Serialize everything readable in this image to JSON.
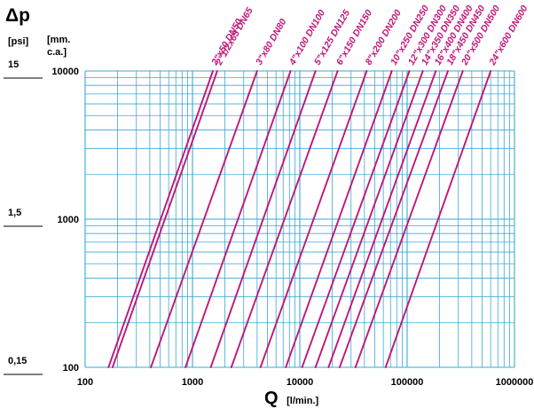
{
  "chart_data": {
    "type": "line",
    "x_scale": "log",
    "y_scale": "log",
    "xlim": [
      100,
      1000000
    ],
    "ylim": [
      100,
      10000
    ],
    "grid": true,
    "title": "Δp",
    "xlabel_main": "Q",
    "xlabel_unit": "[l/min.]",
    "y_unit_left": "[psi]",
    "y_unit_right": "[mm. c.a.]",
    "x_ticks": [
      {
        "value": 100,
        "label": "100"
      },
      {
        "value": 1000,
        "label": "1000"
      },
      {
        "value": 10000,
        "label": "10000"
      },
      {
        "value": 100000,
        "label": "100000"
      },
      {
        "value": 1000000,
        "label": "1000000"
      }
    ],
    "y_ticks": [
      {
        "value": 10000,
        "label": "10000",
        "psi_label": "15"
      },
      {
        "value": 1000,
        "label": "1000",
        "psi_label": "1,5"
      },
      {
        "value": 100,
        "label": "100",
        "psi_label": "0,15"
      }
    ],
    "series": [
      {
        "name": "2\"x50 DN50",
        "x_at_ymin": 165,
        "x_at_ymax": 1550
      },
      {
        "name": "2\"1/2x65 DN65",
        "x_at_ymin": 180,
        "x_at_ymax": 1700
      },
      {
        "name": "3\"x80 DN80",
        "x_at_ymin": 410,
        "x_at_ymax": 4000
      },
      {
        "name": "4\"x100 DN100",
        "x_at_ymin": 860,
        "x_at_ymax": 8200
      },
      {
        "name": "5\"x125 DN125",
        "x_at_ymin": 1480,
        "x_at_ymax": 14000
      },
      {
        "name": "6\"x150 DN150",
        "x_at_ymin": 2300,
        "x_at_ymax": 22500
      },
      {
        "name": "8\"x200 DN200",
        "x_at_ymin": 4300,
        "x_at_ymax": 42000
      },
      {
        "name": "10\"x250 DN250",
        "x_at_ymin": 7400,
        "x_at_ymax": 72000
      },
      {
        "name": "12\"x300 DN300",
        "x_at_ymin": 10500,
        "x_at_ymax": 105000
      },
      {
        "name": "14\"x350 DN350",
        "x_at_ymin": 14000,
        "x_at_ymax": 140000
      },
      {
        "name": "16\"x400 DN400",
        "x_at_ymin": 18500,
        "x_at_ymax": 185000
      },
      {
        "name": "18\"x450 DN450",
        "x_at_ymin": 23500,
        "x_at_ymax": 240000
      },
      {
        "name": "20\"x500 DN500",
        "x_at_ymin": 33000,
        "x_at_ymax": 330000
      },
      {
        "name": "24\"x600 DN600",
        "x_at_ymin": 63000,
        "x_at_ymax": 600000
      }
    ],
    "colors": {
      "series": "#c0177a",
      "grid": "#3aa9d6",
      "text": "#000000"
    }
  }
}
